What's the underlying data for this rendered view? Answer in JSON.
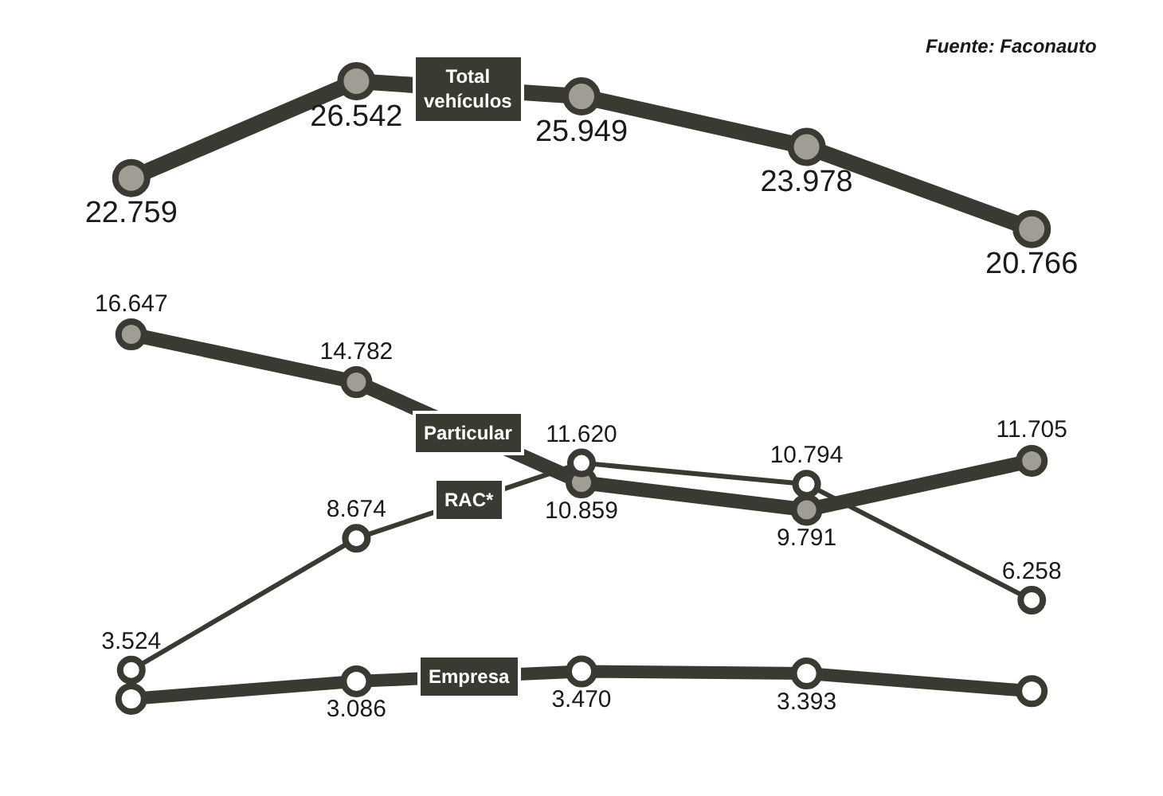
{
  "chart_data": {
    "type": "line",
    "categories": [
      null,
      null,
      null,
      null,
      null
    ],
    "series": [
      {
        "name": "Total vehículos",
        "color": "#3a3a32",
        "values": [
          22759,
          26542,
          25949,
          23978,
          20766
        ],
        "value_labels": [
          "22.759",
          "26.542",
          "25.949",
          "23.978",
          "20.766"
        ]
      },
      {
        "name": "Particular",
        "color": "#3a3a32",
        "values": [
          16647,
          14782,
          10859,
          9791,
          11705
        ],
        "value_labels": [
          "16.647",
          "14.782",
          "10.859",
          "9.791",
          "11.705"
        ]
      },
      {
        "name": "RAC*",
        "color": "#3a3a32",
        "values": [
          3524,
          8674,
          11620,
          10794,
          6258
        ],
        "value_labels": [
          "3.524",
          "8.674",
          "11.620",
          "10.794",
          "6.258"
        ]
      },
      {
        "name": "Empresa",
        "color": "#3a3a32",
        "values": [
          2400,
          3086,
          3470,
          3393,
          2700
        ],
        "value_labels": [
          null,
          "3.086",
          "3.470",
          "3.393",
          null
        ]
      }
    ],
    "annotations": [
      "Fuente: Faconauto"
    ],
    "marker": "circle",
    "line_style": "solid",
    "legend": false,
    "tick_labels": false
  }
}
